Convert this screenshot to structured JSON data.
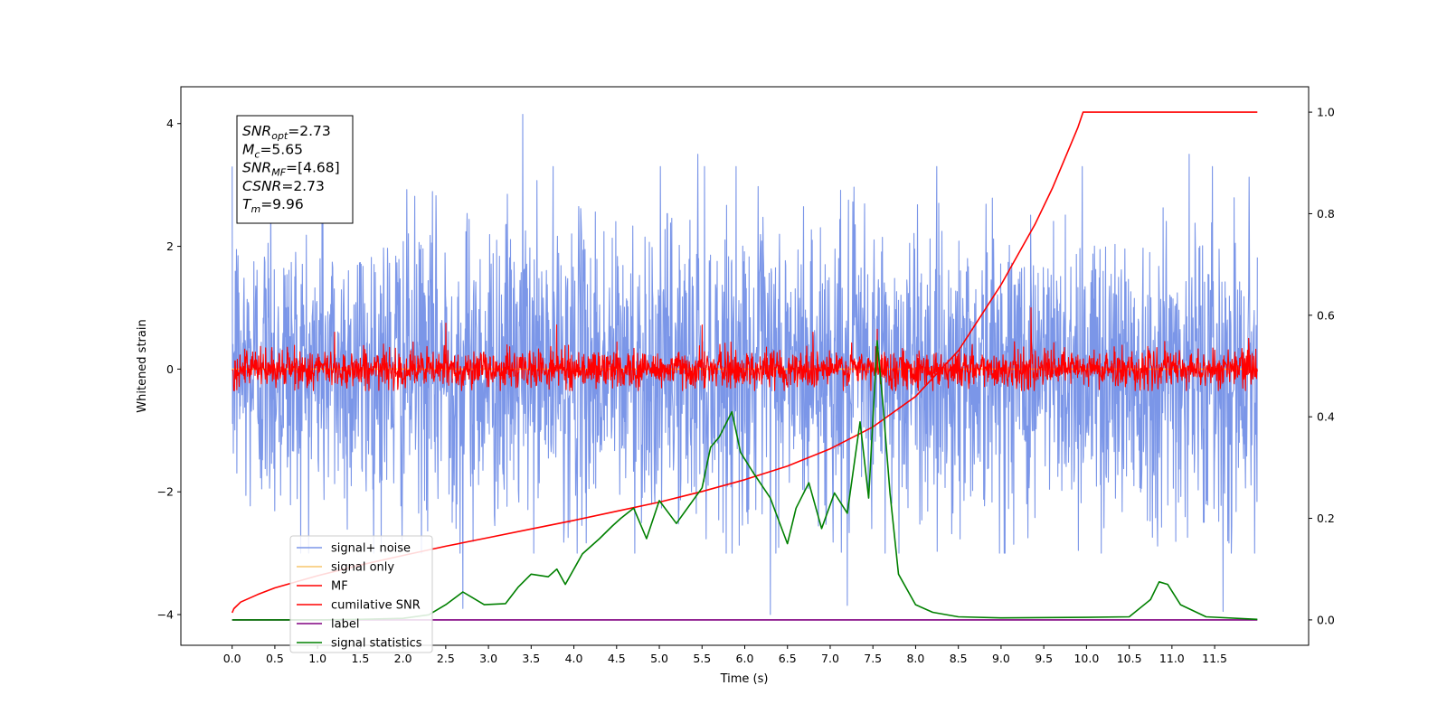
{
  "chart_data": {
    "type": "line",
    "xlabel": "Time (s)",
    "ylabel": "Whitened strain",
    "xlim": [
      -0.6,
      12.6
    ],
    "ylim": [
      -4.5,
      4.6
    ],
    "ylim_right": [
      -0.05,
      1.05
    ],
    "x_ticks": [
      0.0,
      0.5,
      1.0,
      1.5,
      2.0,
      2.5,
      3.0,
      3.5,
      4.0,
      4.5,
      5.0,
      5.5,
      6.0,
      6.5,
      7.0,
      7.5,
      8.0,
      8.5,
      9.0,
      9.5,
      10.0,
      10.5,
      11.0,
      11.5
    ],
    "x_tick_labels": [
      "0.0",
      "0.5",
      "1.0",
      "1.5",
      "2.0",
      "2.5",
      "3.0",
      "3.5",
      "4.0",
      "4.5",
      "5.0",
      "5.5",
      "6.0",
      "6.5",
      "7.0",
      "7.5",
      "8.0",
      "8.5",
      "9.0",
      "9.5",
      "10.0",
      "10.5",
      "11.0",
      "11.5"
    ],
    "y_ticks_left": [
      -4,
      -2,
      0,
      2,
      4
    ],
    "y_tick_labels_left": [
      "−4",
      "−2",
      "0",
      "2",
      "4"
    ],
    "y_ticks_right": [
      0.0,
      0.2,
      0.4,
      0.6,
      0.8,
      1.0
    ],
    "y_tick_labels_right": [
      "0.0",
      "0.2",
      "0.4",
      "0.6",
      "0.8",
      "1.0"
    ],
    "grid": false,
    "legend_position": "lower-left",
    "annotation": {
      "lines": [
        {
          "base": "SNR",
          "sub": "opt",
          "value": "=2.73"
        },
        {
          "base": "M",
          "sub": "c",
          "value": "=5.65"
        },
        {
          "base": "SNR",
          "sub": "MF",
          "value": "=[4.68]"
        },
        {
          "base": "CSNR",
          "sub": "",
          "value": "=2.73"
        },
        {
          "base": "T",
          "sub": "m",
          "value": "=9.96"
        }
      ]
    },
    "series": [
      {
        "name": "signal+ noise",
        "axis": "left",
        "color": "#7b96e8",
        "style": "noise",
        "x_range": [
          0.0,
          12.0
        ],
        "envelope": [
          -3.0,
          3.3
        ],
        "peaks": [
          [
            0.45,
            3.3
          ],
          [
            1.05,
            2.9
          ],
          [
            3.4,
            4.15
          ],
          [
            2.7,
            -3.9
          ],
          [
            5.45,
            3.5
          ],
          [
            6.3,
            -4.0
          ],
          [
            7.2,
            -3.85
          ],
          [
            11.6,
            -3.95
          ],
          [
            9.95,
            3.3
          ],
          [
            11.2,
            3.5
          ],
          [
            0.05,
            1.95
          ]
        ]
      },
      {
        "name": "signal only",
        "axis": "left",
        "color": "#f7c66b",
        "style": "line",
        "x": [
          0.0,
          12.0
        ],
        "y": [
          0.0,
          0.0
        ]
      },
      {
        "name": "MF",
        "axis": "left",
        "color": "#ff0000",
        "style": "noise",
        "x_range": [
          0.0,
          12.0
        ],
        "envelope": [
          -0.35,
          0.45
        ],
        "peaks": [
          [
            2.5,
            0.75
          ],
          [
            3.8,
            0.72
          ],
          [
            5.5,
            0.72
          ],
          [
            7.55,
            0.65
          ],
          [
            9.35,
            1.0
          ],
          [
            1.2,
            0.6
          ],
          [
            6.8,
            0.6
          ],
          [
            11.9,
            0.5
          ]
        ]
      },
      {
        "name": "cumilative SNR",
        "axis": "right",
        "color": "#ff0000",
        "style": "line",
        "x": [
          0.0,
          0.02,
          0.1,
          0.3,
          0.5,
          1.0,
          1.5,
          2.0,
          2.5,
          3.0,
          3.5,
          4.0,
          4.5,
          5.0,
          5.5,
          6.0,
          6.5,
          7.0,
          7.5,
          8.0,
          8.5,
          9.0,
          9.2,
          9.4,
          9.6,
          9.8,
          9.9,
          9.96,
          10.0,
          12.0
        ],
        "y": [
          0.014,
          0.022,
          0.035,
          0.05,
          0.063,
          0.087,
          0.108,
          0.127,
          0.145,
          0.162,
          0.179,
          0.196,
          0.214,
          0.232,
          0.253,
          0.276,
          0.303,
          0.337,
          0.38,
          0.44,
          0.53,
          0.66,
          0.72,
          0.78,
          0.85,
          0.93,
          0.97,
          1.0,
          1.0,
          1.0
        ]
      },
      {
        "name": "label",
        "axis": "right",
        "color": "#800080",
        "style": "line",
        "x": [
          0.0,
          12.0
        ],
        "y": [
          0.0,
          0.0
        ]
      },
      {
        "name": "signal statistics",
        "axis": "right",
        "color": "#008000",
        "style": "line",
        "x": [
          0.0,
          0.5,
          1.0,
          1.5,
          2.0,
          2.3,
          2.5,
          2.7,
          2.8,
          2.95,
          3.2,
          3.35,
          3.5,
          3.7,
          3.8,
          3.9,
          4.1,
          4.3,
          4.45,
          4.55,
          4.7,
          4.85,
          5.0,
          5.2,
          5.35,
          5.5,
          5.6,
          5.7,
          5.85,
          5.95,
          6.1,
          6.3,
          6.5,
          6.6,
          6.75,
          6.9,
          7.05,
          7.2,
          7.35,
          7.45,
          7.55,
          7.62,
          7.7,
          7.8,
          8.0,
          8.2,
          8.5,
          9.0,
          10.0,
          10.5,
          10.75,
          10.85,
          10.95,
          11.1,
          11.4,
          12.0
        ],
        "y": [
          0.0,
          0.0,
          0.0,
          0.001,
          0.003,
          0.01,
          0.03,
          0.055,
          0.045,
          0.03,
          0.032,
          0.065,
          0.09,
          0.085,
          0.1,
          0.07,
          0.13,
          0.16,
          0.185,
          0.2,
          0.22,
          0.16,
          0.235,
          0.19,
          0.225,
          0.26,
          0.34,
          0.36,
          0.41,
          0.33,
          0.29,
          0.24,
          0.15,
          0.22,
          0.27,
          0.18,
          0.25,
          0.21,
          0.39,
          0.24,
          0.55,
          0.42,
          0.25,
          0.09,
          0.03,
          0.015,
          0.006,
          0.004,
          0.005,
          0.006,
          0.04,
          0.075,
          0.07,
          0.03,
          0.006,
          0.001
        ]
      }
    ]
  }
}
